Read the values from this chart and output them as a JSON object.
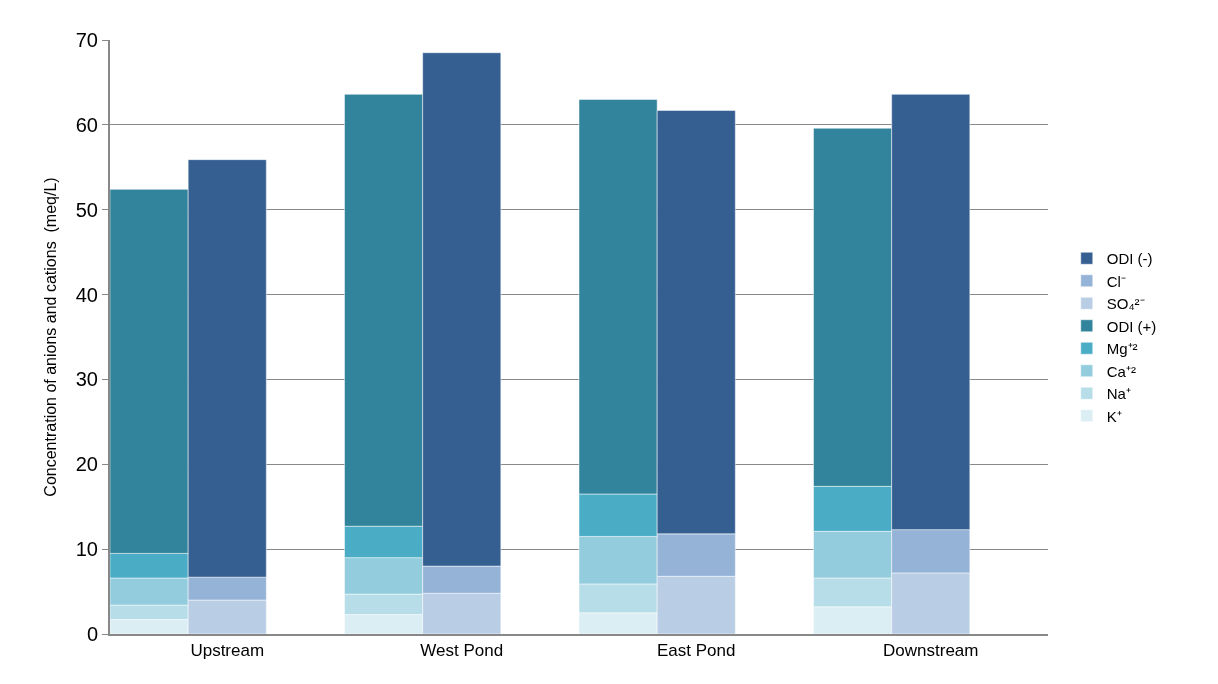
{
  "chart_data": {
    "type": "bar",
    "stacked": true,
    "ylabel": "Concentration of anions and cations  (meq/L)",
    "categories": [
      null,
      "Upstream",
      null,
      null,
      "West Pond",
      null,
      null,
      "East Pond",
      null,
      null,
      "Downstream",
      null
    ],
    "series": [
      {
        "name": "K⁺",
        "color": "#dbeef4",
        "values": [
          1.7,
          null,
          null,
          2.3,
          null,
          null,
          2.5,
          null,
          null,
          3.2,
          null,
          null
        ]
      },
      {
        "name": "Na⁺",
        "color": "#b7dee8",
        "values": [
          1.7,
          null,
          null,
          2.4,
          null,
          null,
          3.4,
          null,
          null,
          3.4,
          null,
          null
        ]
      },
      {
        "name": "Ca⁺²",
        "color": "#93cddd",
        "values": [
          3.2,
          null,
          null,
          4.3,
          null,
          null,
          5.6,
          null,
          null,
          5.5,
          null,
          null
        ]
      },
      {
        "name": "Mg⁺²",
        "color": "#4bacc6",
        "values": [
          2.9,
          null,
          null,
          3.7,
          null,
          null,
          5.0,
          null,
          null,
          5.3,
          null,
          null
        ]
      },
      {
        "name": "ODI (+)",
        "color": "#31849b",
        "values": [
          42.9,
          null,
          null,
          50.9,
          null,
          null,
          46.5,
          null,
          null,
          42.2,
          null,
          null
        ]
      },
      {
        "name": "SO₄²⁻",
        "color": "#b9cde5",
        "values": [
          null,
          4.0,
          null,
          null,
          4.8,
          null,
          null,
          6.8,
          null,
          null,
          7.2,
          null
        ]
      },
      {
        "name": "Cl⁻",
        "color": "#95b3d7",
        "values": [
          null,
          2.7,
          null,
          null,
          3.2,
          null,
          null,
          5.0,
          null,
          null,
          5.1,
          null
        ]
      },
      {
        "name": "ODI (-)",
        "color": "#355f91",
        "values": [
          null,
          49.2,
          null,
          null,
          60.5,
          null,
          null,
          49.9,
          null,
          null,
          51.3,
          null
        ]
      }
    ],
    "ylim": [
      0,
      70
    ],
    "yticks": [
      0,
      10,
      20,
      30,
      40,
      50,
      60,
      70
    ],
    "grid": "y",
    "legend": "right"
  }
}
